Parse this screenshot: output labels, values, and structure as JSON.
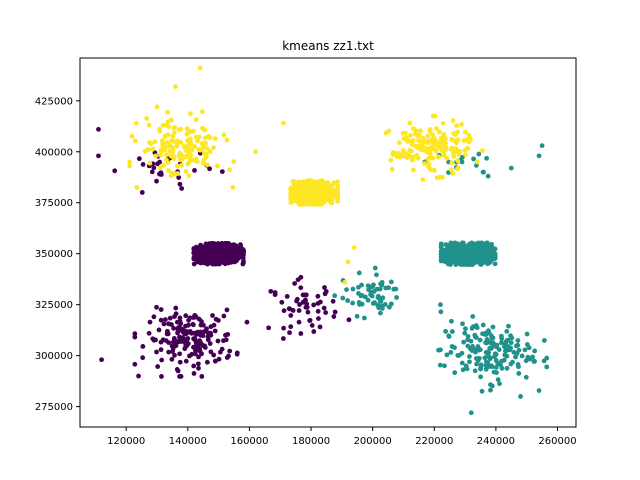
{
  "chart_data": {
    "type": "scatter",
    "title": "kmeans zz1.txt",
    "xlabel": "",
    "ylabel": "",
    "xlim": [
      105000,
      266000
    ],
    "ylim": [
      265000,
      446000
    ],
    "xticks": [
      120000,
      140000,
      160000,
      180000,
      200000,
      220000,
      240000,
      260000
    ],
    "yticks": [
      275000,
      300000,
      325000,
      350000,
      375000,
      400000,
      425000
    ],
    "xtick_labels": [
      "120000",
      "140000",
      "160000",
      "180000",
      "200000",
      "220000",
      "240000",
      "260000"
    ],
    "ytick_labels": [
      "275000",
      "300000",
      "325000",
      "350000",
      "375000",
      "400000",
      "425000"
    ],
    "grid": false,
    "legend": "none",
    "colors": {
      "purple": "#440154",
      "teal": "#21918c",
      "yellow": "#fde725"
    },
    "series": [
      {
        "color": "#440154",
        "groups": [
          {
            "kind": "dense",
            "center": [
              150000,
              350000
            ],
            "spread": [
              3500,
              2200
            ],
            "n": 900
          },
          {
            "kind": "sparse",
            "center": [
              141000,
              308000
            ],
            "spread": [
              7000,
              7000
            ],
            "n": 180
          },
          {
            "kind": "sparse",
            "center": [
              178000,
              324000
            ],
            "spread": [
              5500,
              6000
            ],
            "n": 55
          },
          {
            "kind": "sparse",
            "center": [
              133000,
              392000
            ],
            "spread": [
              7000,
              5500
            ],
            "n": 30
          }
        ],
        "points": [
          [
            111000,
            411000
          ],
          [
            111000,
            398000
          ],
          [
            112000,
            298000
          ],
          [
            124000,
            290000
          ],
          [
            138000,
            382000
          ]
        ]
      },
      {
        "color": "#21918c",
        "groups": [
          {
            "kind": "dense",
            "center": [
              231000,
              350000
            ],
            "spread": [
              3800,
              2300
            ],
            "n": 900
          },
          {
            "kind": "sparse",
            "center": [
              237000,
              302000
            ],
            "spread": [
              7500,
              7500
            ],
            "n": 170
          },
          {
            "kind": "sparse",
            "center": [
              199000,
              330000
            ],
            "spread": [
              5000,
              5000
            ],
            "n": 60
          },
          {
            "kind": "sparse",
            "center": [
              228000,
              393000
            ],
            "spread": [
              6000,
              3000
            ],
            "n": 14
          }
        ],
        "points": [
          [
            255000,
            403000
          ],
          [
            254000,
            398000
          ],
          [
            245000,
            392000
          ],
          [
            236000,
            390000
          ],
          [
            229000,
            395000
          ],
          [
            222000,
            325000
          ],
          [
            248000,
            280000
          ],
          [
            232000,
            272000
          ]
        ]
      },
      {
        "color": "#fde725",
        "groups": [
          {
            "kind": "dense",
            "center": [
              181000,
              380000
            ],
            "spread": [
              3300,
              2500
            ],
            "n": 900
          },
          {
            "kind": "sparse",
            "center": [
              138000,
              402000
            ],
            "spread": [
              6500,
              7500
            ],
            "n": 150
          },
          {
            "kind": "sparse",
            "center": [
              219000,
              402000
            ],
            "spread": [
              6500,
              6000
            ],
            "n": 170
          }
        ],
        "points": [
          [
            144000,
            441000
          ],
          [
            136000,
            432000
          ],
          [
            130000,
            422000
          ],
          [
            171000,
            414000
          ],
          [
            162000,
            400000
          ],
          [
            194000,
            353000
          ],
          [
            192000,
            346000
          ],
          [
            191000,
            336000
          ]
        ]
      }
    ]
  }
}
